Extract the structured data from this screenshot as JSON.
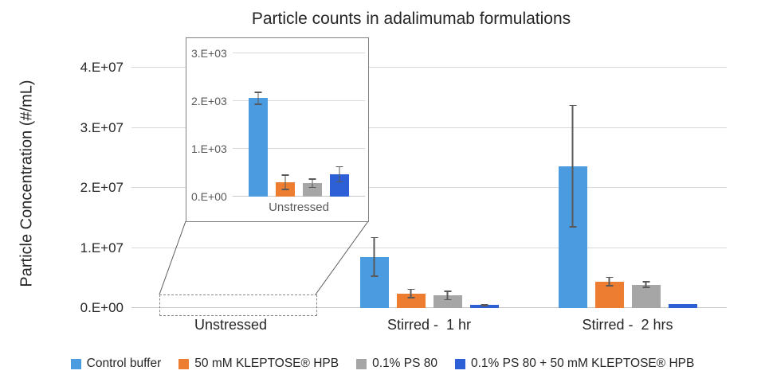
{
  "chart_data": {
    "type": "bar",
    "title": "Particle counts in adalimumab formulations",
    "ylabel": "Particle Concentration (#/mL)",
    "xlabel": "",
    "ylim": [
      0,
      40000000
    ],
    "ytick_labels": [
      "0.E+00",
      "1.E+07",
      "2.E+07",
      "3.E+07",
      "4.E+07"
    ],
    "grid": true,
    "legend_position": "bottom",
    "categories": [
      "Unstressed",
      "Stirred -  1 hr",
      "Stirred -  2 hrs"
    ],
    "series": [
      {
        "name": "Control buffer",
        "color": "#4A9BDF",
        "values": [
          2060,
          8500000,
          23600000
        ],
        "errors": [
          140,
          3300000,
          10200000
        ]
      },
      {
        "name": "50 mM KLEPTOSE® HPB",
        "color": "#ED7D31",
        "values": [
          300,
          2400000,
          4400000
        ],
        "errors": [
          160,
          800000,
          800000
        ]
      },
      {
        "name": "0.1% PS 80",
        "color": "#A6A6A6",
        "values": [
          280,
          2100000,
          3900000
        ],
        "errors": [
          100,
          800000,
          550000
        ]
      },
      {
        "name": "0.1% PS 80 + 50 mM KLEPTOSE® HPB",
        "color": "#2D5FD7",
        "values": [
          470,
          500000,
          650000
        ],
        "errors": [
          170,
          200000,
          120000
        ]
      }
    ],
    "inset": {
      "description": "zoom of Unstressed group",
      "category": "Unstressed",
      "category_index": 0,
      "ylim": [
        0,
        3000
      ],
      "ytick_labels": [
        "0.E+00",
        "1.E+03",
        "2.E+03",
        "3.E+03"
      ]
    },
    "colors": {
      "gridline": "#D9D9D9",
      "axis_line": "#C6C6C6",
      "error_bar": "#595959",
      "inset_border": "#808080",
      "callout_line": "#595959",
      "text": "#262626",
      "inset_text": "#595959",
      "background": "#FFFFFF"
    }
  }
}
